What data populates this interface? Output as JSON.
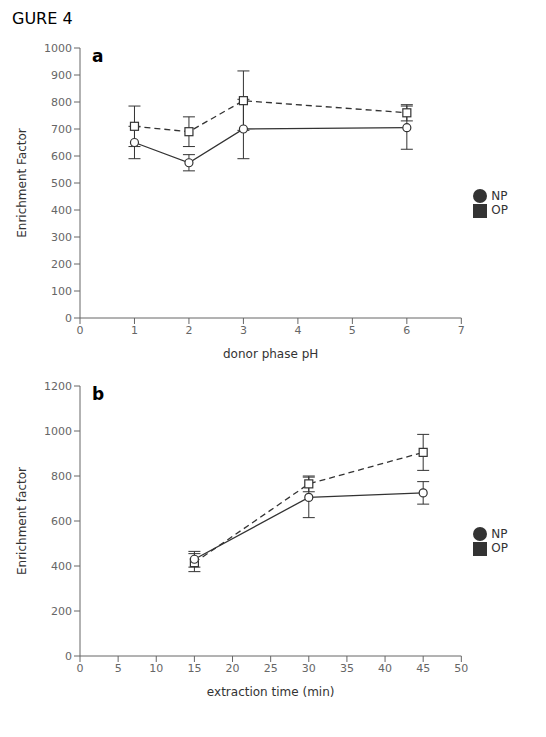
{
  "chart_data": [
    {
      "type": "line",
      "title": "GURE 4",
      "annotations": [
        "a"
      ],
      "x": [
        1,
        2,
        3,
        6
      ],
      "xlabel": "donor phase pH",
      "ylabel": "Enrichment Factor",
      "xlim": [
        0,
        7
      ],
      "ylim": [
        0,
        1000
      ],
      "xticks": [
        0,
        1,
        2,
        3,
        4,
        5,
        6,
        7
      ],
      "yticks": [
        0,
        100,
        200,
        300,
        400,
        500,
        600,
        700,
        800,
        900,
        1000
      ],
      "grid": false,
      "legend": "right",
      "series": [
        {
          "name": "OP",
          "color": "#333333",
          "marker": "square",
          "line_style": "dashed",
          "values": [
            710,
            690,
            805,
            760
          ],
          "errors": [
            75,
            55,
            110,
            30
          ]
        },
        {
          "name": "NP",
          "color": "#333333",
          "marker": "circle",
          "line_style": "solid",
          "values": [
            650,
            575,
            700,
            705
          ],
          "errors": [
            60,
            30,
            110,
            80
          ]
        }
      ]
    },
    {
      "type": "line",
      "annotations": [
        "b"
      ],
      "x": [
        15,
        30,
        45
      ],
      "xlabel": "extraction time (min)",
      "ylabel": "Enrichment factor",
      "xlim": [
        0,
        50
      ],
      "ylim": [
        0,
        1200
      ],
      "xticks": [
        0,
        5,
        10,
        15,
        20,
        25,
        30,
        35,
        40,
        45,
        50
      ],
      "yticks": [
        0,
        200,
        400,
        600,
        800,
        1000,
        1200
      ],
      "grid": false,
      "legend": "right",
      "series": [
        {
          "name": "OP",
          "color": "#333333",
          "marker": "square",
          "line_style": "dashed",
          "values": [
            415,
            765,
            905
          ],
          "errors": [
            40,
            35,
            80
          ]
        },
        {
          "name": "NP",
          "color": "#333333",
          "marker": "circle",
          "line_style": "solid",
          "values": [
            430,
            705,
            725
          ],
          "errors": [
            35,
            90,
            50
          ]
        }
      ]
    }
  ]
}
